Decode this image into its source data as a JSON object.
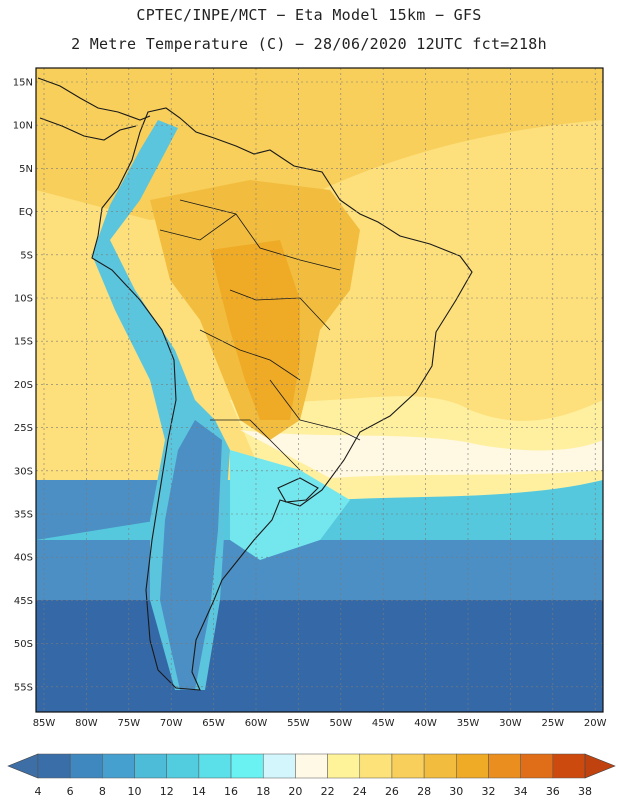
{
  "header": {
    "line1": "CPTEC/INPE/MCT −  Eta Model 15km − GFS",
    "line2": "2 Metre Temperature (C) − 28/06/2020 12UTC fct=218h"
  },
  "map": {
    "lat_labels": [
      "15N",
      "10N",
      "5N",
      "EQ",
      "5S",
      "10S",
      "15S",
      "20S",
      "25S",
      "30S",
      "35S",
      "40S",
      "45S",
      "50S",
      "55S"
    ],
    "lon_labels": [
      "85W",
      "80W",
      "75W",
      "70W",
      "65W",
      "60W",
      "55W",
      "50W",
      "45W",
      "40W",
      "35W",
      "30W",
      "25W",
      "20W"
    ]
  },
  "colorbar": {
    "labels": [
      "4",
      "6",
      "8",
      "10",
      "12",
      "14",
      "16",
      "18",
      "20",
      "22",
      "24",
      "26",
      "28",
      "30",
      "32",
      "34",
      "36",
      "38"
    ],
    "colors": [
      "#3a6ea8",
      "#3f88bf",
      "#46a0cf",
      "#4dbcd9",
      "#52cde0",
      "#5be0ea",
      "#6af2f2",
      "#d2f6fb",
      "#fff9e6",
      "#fff39a",
      "#fde27a",
      "#f8cf5b",
      "#f2bd3e",
      "#efaa26",
      "#ea8e20",
      "#e06d17",
      "#cd4a0e"
    ],
    "low_color": "#3d6fa6",
    "high_color": "#c0420e"
  },
  "map_colors": {
    "ocean_cold": "#3568a6",
    "ocean_cool": "#4b8fc4",
    "ocean_mild": "#56c8dd",
    "ocean_warm": "#74e6ee",
    "near_white": "#fff8e2",
    "pale_yellow": "#fff0a0",
    "light_yellow": "#fde07c",
    "yellow": "#f8cf5b",
    "gold": "#f2bd3e",
    "orange": "#efaa26",
    "andes": "#5bc5de",
    "coast_line": "#1a1a1a"
  }
}
